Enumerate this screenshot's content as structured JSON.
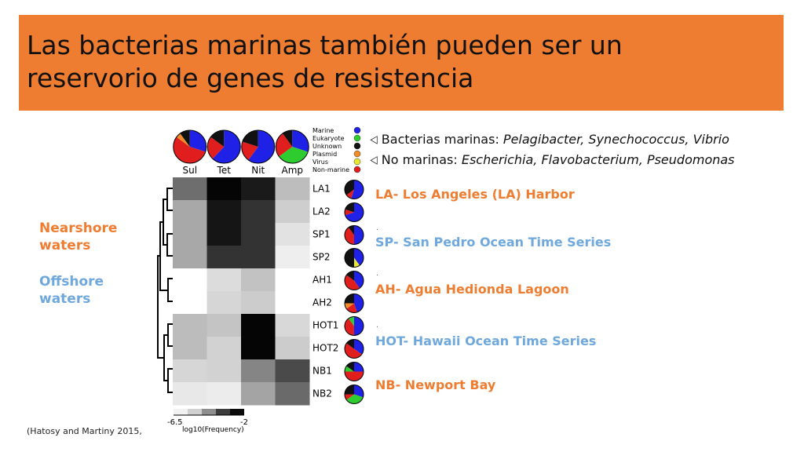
{
  "title": "Las bacterias marinas también pueden ser un\nreservorio de genes de resistencia",
  "side_labels": {
    "nearshore": "Nearshore\nwaters",
    "offshore": "Offshore\nwaters"
  },
  "bullets": [
    {
      "lead": "Bacterias marinas:",
      "examples": "Pelagibacter, Synechococcus, Vibrio"
    },
    {
      "lead": "No marinas:",
      "examples": "Escherichia, Flavobacterium, Pseudomonas"
    }
  ],
  "sites": [
    {
      "text": "LA- Los Angeles (LA) Harbor",
      "color": "orange"
    },
    {
      "text": "SP- San Pedro Ocean Time Series",
      "color": "blue"
    },
    {
      "text": "AH- Agua Hedionda Lagoon",
      "color": "orange"
    },
    {
      "text": "HOT- Hawaii Ocean Time Series",
      "color": "blue"
    },
    {
      "text": "NB- Newport Bay",
      "color": "orange"
    }
  ],
  "citation": "(Hatosy and Martiny 2015,",
  "legend": {
    "items": [
      {
        "label": "Marine",
        "color": "#1f22e6"
      },
      {
        "label": "Eukaryote",
        "color": "#2ecc2e"
      },
      {
        "label": "Unknown",
        "color": "#111111"
      },
      {
        "label": "Plasmid",
        "color": "#f28c28"
      },
      {
        "label": "Virus",
        "color": "#e8e830"
      },
      {
        "label": "Non-marine",
        "color": "#e01e1e"
      }
    ]
  },
  "colorbar": {
    "min_label": "-6.5",
    "max_label": "-2",
    "axis_label": "log10(Frequency)"
  },
  "heatmap": {
    "columns": [
      "Sul",
      "Tet",
      "Nit",
      "Amp"
    ],
    "rows": [
      "LA1",
      "LA2",
      "SP1",
      "SP2",
      "AH1",
      "AH2",
      "HOT1",
      "HOT2",
      "NB1",
      "NB2"
    ],
    "cells": [
      [
        "#6e6e6e",
        "#050505",
        "#1a1a1a",
        "#bdbdbd"
      ],
      [
        "#a8a8a8",
        "#151515",
        "#333333",
        "#cecece"
      ],
      [
        "#a8a8a8",
        "#151515",
        "#333333",
        "#e2e2e2"
      ],
      [
        "#a8a8a8",
        "#333333",
        "#333333",
        "#eeeeee"
      ],
      [
        "#ffffff",
        "#dcdcdc",
        "#c2c2c2",
        "#ffffff"
      ],
      [
        "#ffffff",
        "#d6d6d6",
        "#cccccc",
        "#ffffff"
      ],
      [
        "#bcbcbc",
        "#c4c4c4",
        "#050505",
        "#d8d8d8"
      ],
      [
        "#bcbcbc",
        "#d2d2d2",
        "#050505",
        "#cccccc"
      ],
      [
        "#d6d6d6",
        "#d2d2d2",
        "#858585",
        "#4a4a4a"
      ],
      [
        "#e8e8e8",
        "#ececec",
        "#a4a4a4",
        "#6a6a6a"
      ]
    ],
    "column_pies": [
      [
        {
          "c": "#1f22e6",
          "v": 0.3
        },
        {
          "c": "#e01e1e",
          "v": 0.55
        },
        {
          "c": "#f28c28",
          "v": 0.05
        },
        {
          "c": "#111111",
          "v": 0.1
        }
      ],
      [
        {
          "c": "#1f22e6",
          "v": 0.62
        },
        {
          "c": "#e01e1e",
          "v": 0.23
        },
        {
          "c": "#111111",
          "v": 0.15
        }
      ],
      [
        {
          "c": "#1f22e6",
          "v": 0.6
        },
        {
          "c": "#e01e1e",
          "v": 0.2
        },
        {
          "c": "#111111",
          "v": 0.2
        }
      ],
      [
        {
          "c": "#1f22e6",
          "v": 0.3
        },
        {
          "c": "#2ecc2e",
          "v": 0.35
        },
        {
          "c": "#e01e1e",
          "v": 0.25
        },
        {
          "c": "#111111",
          "v": 0.1
        }
      ]
    ],
    "row_pies": [
      [
        {
          "c": "#1f22e6",
          "v": 0.55
        },
        {
          "c": "#e01e1e",
          "v": 0.1
        },
        {
          "c": "#111111",
          "v": 0.35
        }
      ],
      [
        {
          "c": "#1f22e6",
          "v": 0.7
        },
        {
          "c": "#e01e1e",
          "v": 0.1
        },
        {
          "c": "#111111",
          "v": 0.2
        }
      ],
      [
        {
          "c": "#1f22e6",
          "v": 0.5
        },
        {
          "c": "#e01e1e",
          "v": 0.4
        },
        {
          "c": "#111111",
          "v": 0.1
        }
      ],
      [
        {
          "c": "#1f22e6",
          "v": 0.4
        },
        {
          "c": "#e8e830",
          "v": 0.1
        },
        {
          "c": "#111111",
          "v": 0.5
        }
      ],
      [
        {
          "c": "#1f22e6",
          "v": 0.4
        },
        {
          "c": "#e01e1e",
          "v": 0.45
        },
        {
          "c": "#111111",
          "v": 0.15
        }
      ],
      [
        {
          "c": "#1f22e6",
          "v": 0.45
        },
        {
          "c": "#e01e1e",
          "v": 0.2
        },
        {
          "c": "#f28c28",
          "v": 0.1
        },
        {
          "c": "#111111",
          "v": 0.25
        }
      ],
      [
        {
          "c": "#1f22e6",
          "v": 0.5
        },
        {
          "c": "#e01e1e",
          "v": 0.4
        },
        {
          "c": "#2ecc2e",
          "v": 0.1
        }
      ],
      [
        {
          "c": "#1f22e6",
          "v": 0.35
        },
        {
          "c": "#e01e1e",
          "v": 0.5
        },
        {
          "c": "#111111",
          "v": 0.15
        }
      ],
      [
        {
          "c": "#1f22e6",
          "v": 0.25
        },
        {
          "c": "#e01e1e",
          "v": 0.5
        },
        {
          "c": "#2ecc2e",
          "v": 0.1
        },
        {
          "c": "#111111",
          "v": 0.15
        }
      ],
      [
        {
          "c": "#1f22e6",
          "v": 0.3
        },
        {
          "c": "#2ecc2e",
          "v": 0.35
        },
        {
          "c": "#e01e1e",
          "v": 0.1
        },
        {
          "c": "#111111",
          "v": 0.25
        }
      ]
    ]
  }
}
